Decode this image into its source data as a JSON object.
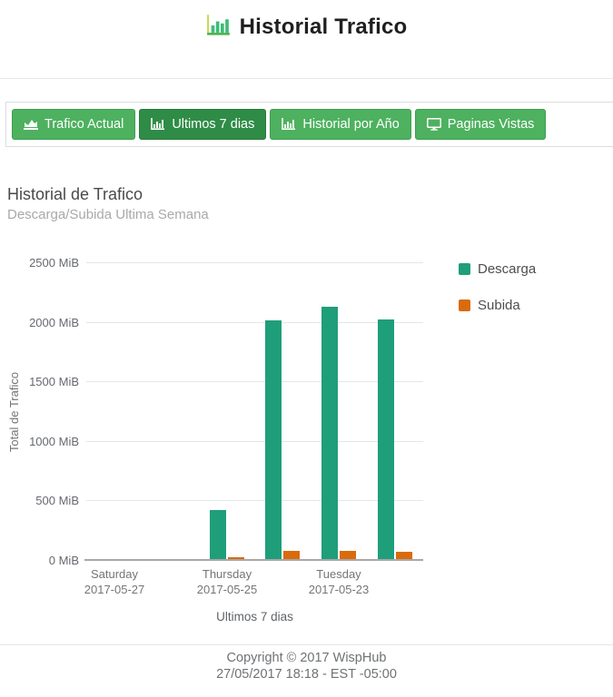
{
  "header": {
    "title": "Historial Trafico",
    "icon": "bar-chart-icon"
  },
  "toolbar": {
    "buttons": [
      {
        "label": "Trafico Actual",
        "icon": "area-chart-icon",
        "active": false
      },
      {
        "label": "Ultimos 7 dias",
        "icon": "bar-chart-icon",
        "active": true
      },
      {
        "label": "Historial por Año",
        "icon": "bar-chart-icon",
        "active": false
      },
      {
        "label": "Paginas Vistas",
        "icon": "desktop-icon",
        "active": false
      }
    ],
    "colors": {
      "normal": "#4db15f",
      "normal_border": "#3f9e51",
      "active": "#2f8c46",
      "active_border": "#26793a"
    }
  },
  "chart_data": {
    "type": "bar",
    "title": "Historial de Trafico",
    "subtitle": "Descarga/Subida Ultima Semana",
    "xlabel": "Ultimos 7 dias",
    "ylabel": "Total de Trafico",
    "ylim": [
      0,
      2500
    ],
    "grid": "horizontal",
    "yticks": [
      {
        "value": 0,
        "label": "0 MiB"
      },
      {
        "value": 500,
        "label": "500 MiB"
      },
      {
        "value": 1000,
        "label": "1000 MiB"
      },
      {
        "value": 1500,
        "label": "1500 MiB"
      },
      {
        "value": 2000,
        "label": "2000 MiB"
      },
      {
        "value": 2500,
        "label": "2500 MiB"
      }
    ],
    "num_slots": 6,
    "x_tick_labels": [
      {
        "slot": 0,
        "day": "Saturday",
        "date": "2017-05-27"
      },
      {
        "slot": 2,
        "day": "Thursday",
        "date": "2017-05-25"
      },
      {
        "slot": 4,
        "day": "Tuesday",
        "date": "2017-05-23"
      }
    ],
    "series": [
      {
        "name": "Descarga",
        "color": "#1f9e7a",
        "values": [
          0,
          0,
          420,
          2010,
          2130,
          2020
        ]
      },
      {
        "name": "Subida",
        "color": "#d96b0d",
        "values": [
          0,
          0,
          20,
          78,
          78,
          68
        ]
      }
    ],
    "legend_position": "right-top"
  },
  "footer": {
    "line1": "Copyright © 2017 WispHub",
    "line2": "27/05/2017 18:18 - EST -05:00"
  }
}
